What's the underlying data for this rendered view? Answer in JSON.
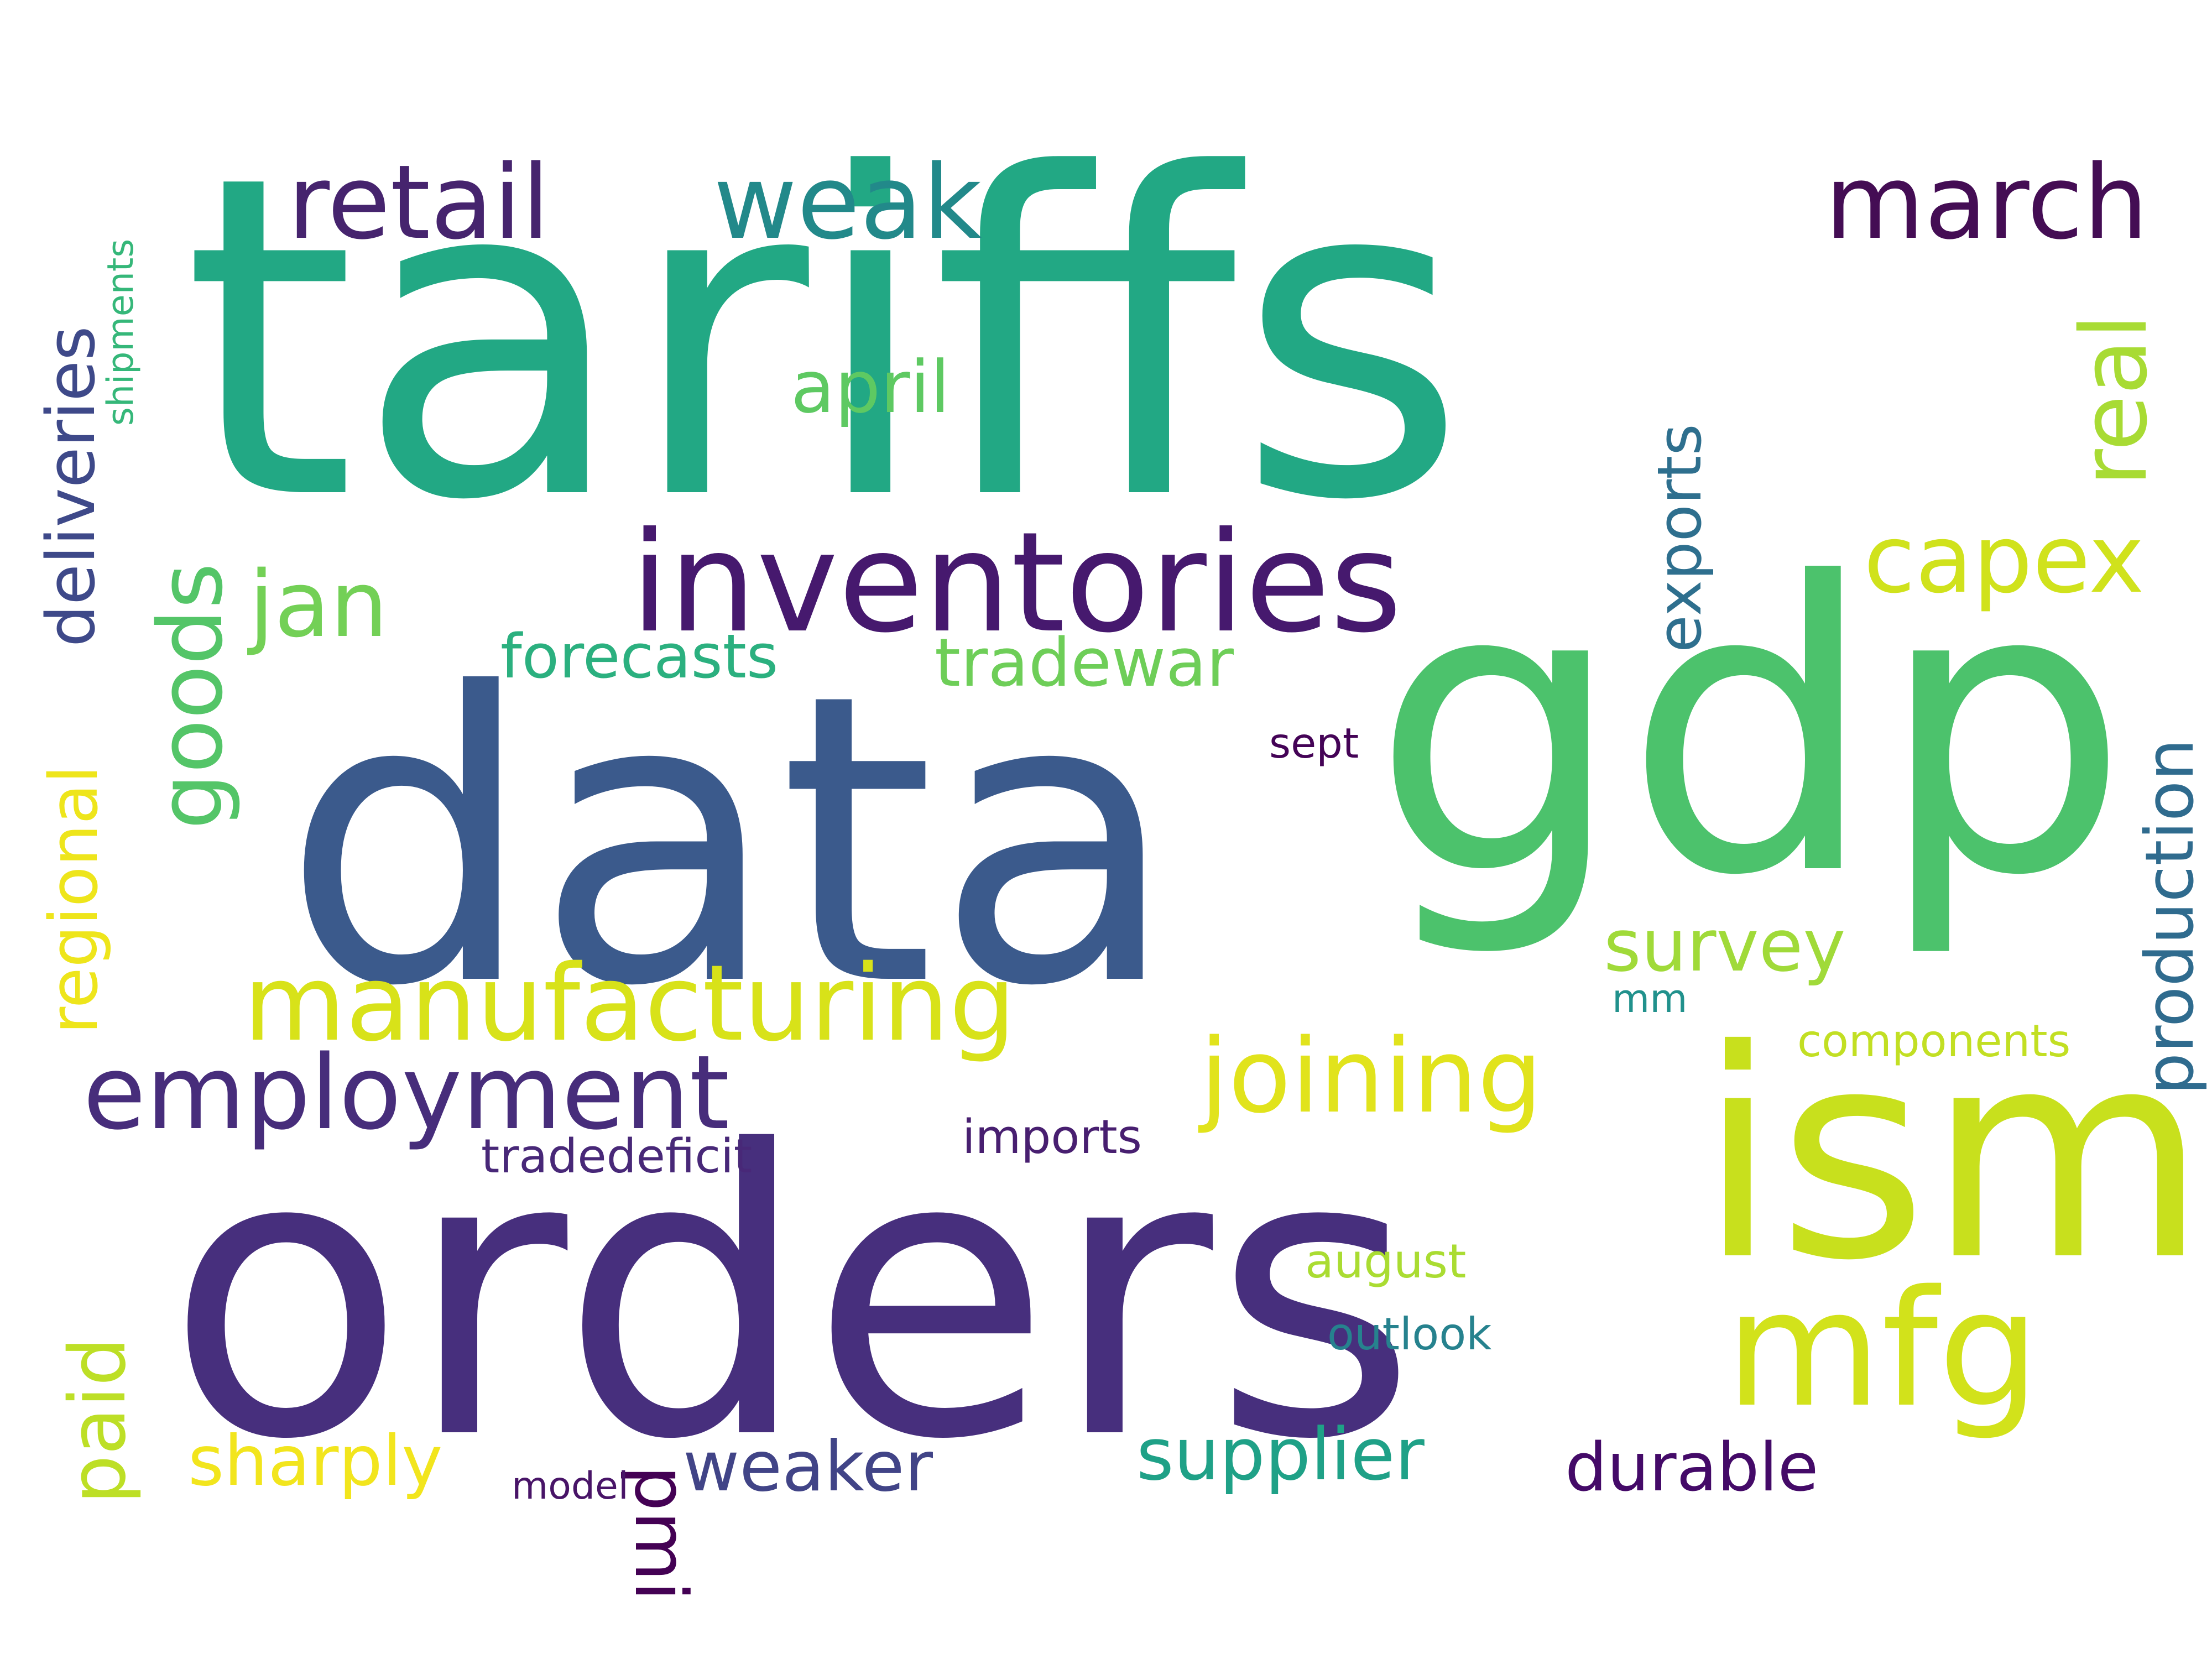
{
  "word_cloud": {
    "words": [
      {
        "text": "tariffs",
        "color": "#22A884"
      },
      {
        "text": "data",
        "color": "#3B5A8C"
      },
      {
        "text": "gdp",
        "color": "#4CC26C"
      },
      {
        "text": "orders",
        "color": "#472F7D"
      },
      {
        "text": "ism",
        "color": "#C8E01D"
      },
      {
        "text": "inventories",
        "color": "#46196E"
      },
      {
        "text": "mfg",
        "color": "#D2E21B"
      },
      {
        "text": "manufacturing",
        "color": "#D8E219"
      },
      {
        "text": "employment",
        "color": "#472D7B"
      },
      {
        "text": "joining",
        "color": "#E1E31C"
      },
      {
        "text": "retail",
        "color": "#46246E"
      },
      {
        "text": "weak",
        "color": "#22898A"
      },
      {
        "text": "march",
        "color": "#440D54"
      },
      {
        "text": "capex",
        "color": "#D0E21C"
      },
      {
        "text": "real",
        "color": "#A8DB34"
      },
      {
        "text": "jan",
        "color": "#73D056"
      },
      {
        "text": "goods",
        "color": "#54C568"
      },
      {
        "text": "deliveries",
        "color": "#3E4989"
      },
      {
        "text": "regional",
        "color": "#EEE51B"
      },
      {
        "text": "paid",
        "color": "#BDDF26"
      },
      {
        "text": "pmi",
        "color": "#440154"
      },
      {
        "text": "production",
        "color": "#2F6B8E"
      },
      {
        "text": "exports",
        "color": "#2E6F8E"
      },
      {
        "text": "forecasts",
        "color": "#2BB07F"
      },
      {
        "text": "tradewar",
        "color": "#6ECE58"
      },
      {
        "text": "april",
        "color": "#5EC962"
      },
      {
        "text": "survey",
        "color": "#A0DA39"
      },
      {
        "text": "supplier",
        "color": "#1FA187"
      },
      {
        "text": "durable",
        "color": "#440A68"
      },
      {
        "text": "weaker",
        "color": "#414487"
      },
      {
        "text": "sharply",
        "color": "#F2E51D"
      },
      {
        "text": "tradedeficit",
        "color": "#482878"
      },
      {
        "text": "imports",
        "color": "#481F70"
      },
      {
        "text": "august",
        "color": "#AADC32"
      },
      {
        "text": "outlook",
        "color": "#26828E"
      },
      {
        "text": "components",
        "color": "#C2DF23"
      },
      {
        "text": "model",
        "color": "#481467"
      },
      {
        "text": "sept",
        "color": "#440356"
      },
      {
        "text": "mm",
        "color": "#21918C"
      },
      {
        "text": "shipments",
        "color": "#35B779"
      }
    ]
  }
}
